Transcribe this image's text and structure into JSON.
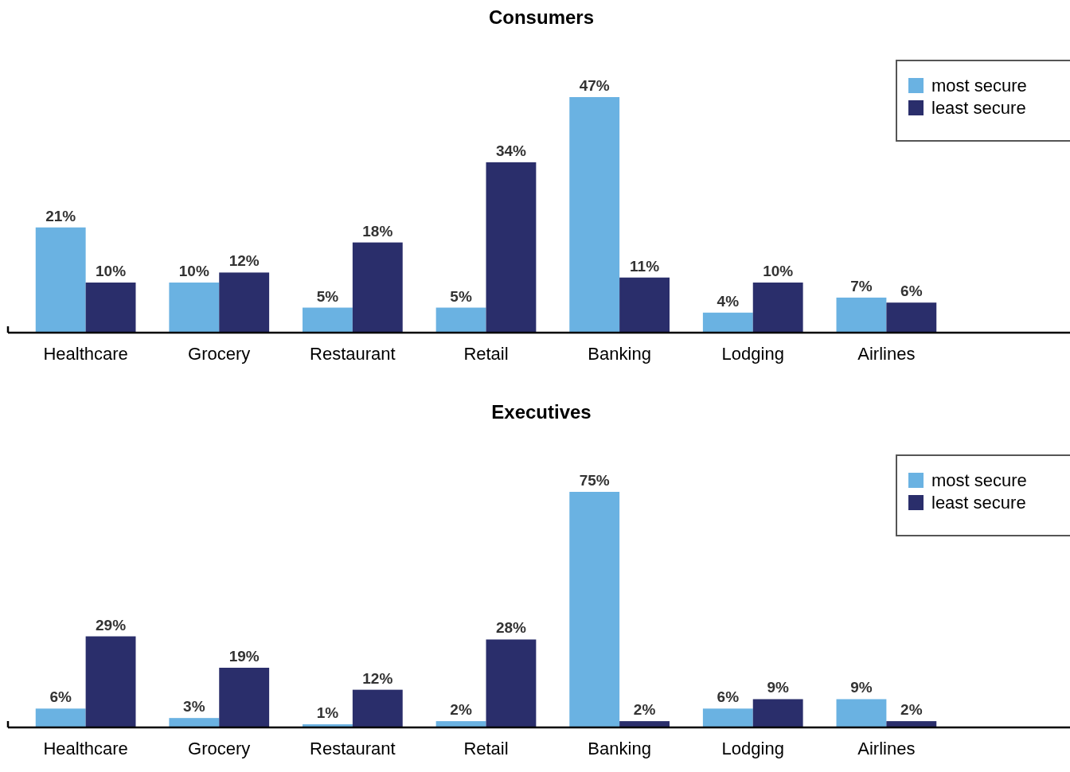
{
  "chart_data": [
    {
      "type": "bar",
      "title": "Consumers",
      "categories": [
        "Healthcare",
        "Grocery",
        "Restaurant",
        "Retail",
        "Banking",
        "Lodging",
        "Airlines"
      ],
      "series": [
        {
          "name": "most secure",
          "color": "#6ab2e2",
          "values": [
            21,
            10,
            5,
            5,
            47,
            4,
            7
          ],
          "value_labels": [
            "21%",
            "10%",
            "5%",
            "5%",
            "47%",
            "4%",
            "7%"
          ]
        },
        {
          "name": "least secure",
          "color": "#2a2e6b",
          "values": [
            10,
            12,
            18,
            34,
            11,
            10,
            6
          ],
          "value_labels": [
            "10%",
            "12%",
            "18%",
            "34%",
            "11%",
            "10%",
            "6%"
          ]
        }
      ],
      "legend": "top right"
    },
    {
      "type": "bar",
      "title": "Executives",
      "categories": [
        "Healthcare",
        "Grocery",
        "Restaurant",
        "Retail",
        "Banking",
        "Lodging",
        "Airlines"
      ],
      "series": [
        {
          "name": "most secure",
          "color": "#6ab2e2",
          "values": [
            6,
            3,
            1,
            2,
            75,
            6,
            9
          ],
          "value_labels": [
            "6%",
            "3%",
            "1%",
            "2%",
            "75%",
            "6%",
            "9%"
          ]
        },
        {
          "name": "least secure",
          "color": "#2a2e6b",
          "values": [
            29,
            19,
            12,
            28,
            2,
            9,
            2
          ],
          "value_labels": [
            "29%",
            "19%",
            "12%",
            "28%",
            "2%",
            "9%",
            "2%"
          ]
        }
      ],
      "legend": "top right"
    }
  ]
}
